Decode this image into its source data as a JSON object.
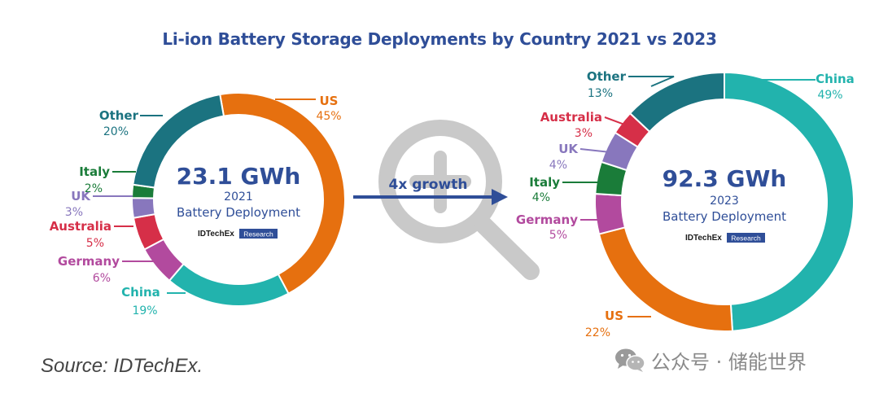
{
  "title": "Li-ion Battery Storage Deployments by Country 2021 vs 2023",
  "source": "Source: IDTechEx.",
  "watermark": {
    "icon": "wechat-icon",
    "text": "公众号 · 储能世界"
  },
  "growth_label": "4x growth",
  "brand": {
    "name": "IDTechEx",
    "tag": "Research"
  },
  "colors": {
    "title": "#2f4e98",
    "US": "#e6700f",
    "China": "#22b3ad",
    "Germany": "#b24a9e",
    "Australia": "#d62f48",
    "UK": "#8877bd",
    "Italy": "#1a7c39",
    "Other": "#1b7380",
    "magnifier": "#c9c9c9",
    "arrow": "#2f4e98"
  },
  "chart_data": [
    {
      "type": "pie",
      "variant": "donut",
      "year": "2021",
      "center_value": "23.1 GWh",
      "center_label": "Battery Deployment",
      "total_gwh": 23.1,
      "slices": [
        {
          "name": "US",
          "label": "US",
          "pct_label": "45%",
          "value": 45
        },
        {
          "name": "China",
          "label": "China",
          "pct_label": "19%",
          "value": 19
        },
        {
          "name": "Germany",
          "label": "Germany",
          "pct_label": "6%",
          "value": 6
        },
        {
          "name": "Australia",
          "label": "Australia",
          "pct_label": "5%",
          "value": 5
        },
        {
          "name": "UK",
          "label": "UK",
          "pct_label": "3%",
          "value": 3
        },
        {
          "name": "Italy",
          "label": "Italy",
          "pct_label": "2%",
          "value": 2
        },
        {
          "name": "Other",
          "label": "Other",
          "pct_label": "20%",
          "value": 20
        }
      ]
    },
    {
      "type": "pie",
      "variant": "donut",
      "year": "2023",
      "center_value": "92.3 GWh",
      "center_label": "Battery Deployment",
      "total_gwh": 92.3,
      "slices": [
        {
          "name": "China",
          "label": "China",
          "pct_label": "49%",
          "value": 49
        },
        {
          "name": "US",
          "label": "US",
          "pct_label": "22%",
          "value": 22
        },
        {
          "name": "Germany",
          "label": "Germany",
          "pct_label": "5%",
          "value": 5
        },
        {
          "name": "Italy",
          "label": "Italy",
          "pct_label": "4%",
          "value": 4
        },
        {
          "name": "UK",
          "label": "UK",
          "pct_label": "4%",
          "value": 4
        },
        {
          "name": "Australia",
          "label": "Australia",
          "pct_label": "3%",
          "value": 3
        },
        {
          "name": "Other",
          "label": "Other",
          "pct_label": "13%",
          "value": 13
        }
      ]
    }
  ]
}
